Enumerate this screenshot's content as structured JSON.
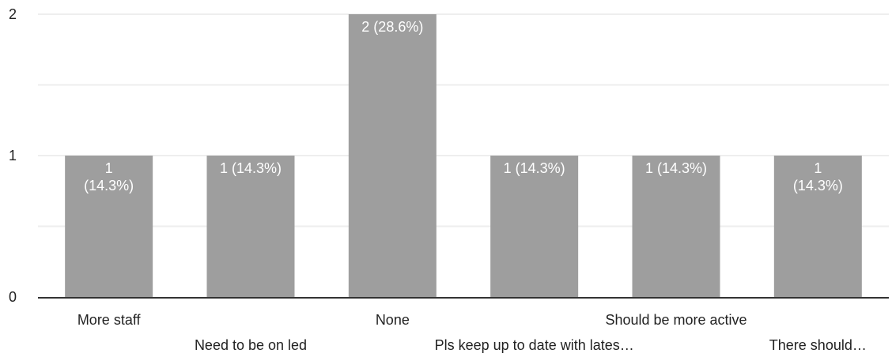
{
  "chart_data": {
    "type": "bar",
    "categories": [
      "More staff",
      "Need to be on led",
      "None",
      "Pls keep up to date with lates…",
      "Should be more active",
      "There should…"
    ],
    "values": [
      1,
      1,
      2,
      1,
      1,
      1
    ],
    "data_labels": [
      [
        "1",
        "(14.3%)"
      ],
      [
        "1 (14.3%)"
      ],
      [
        "2 (28.6%)"
      ],
      [
        "1 (14.3%)"
      ],
      [
        "1 (14.3%)"
      ],
      [
        "1",
        "(14.3%)"
      ]
    ],
    "yticks": [
      "0",
      "1",
      "2"
    ],
    "ylim": [
      0,
      2
    ],
    "grid": true,
    "colors": {
      "bar": "#9e9e9e",
      "grid": "#eeeeee",
      "axis": "#333333",
      "data_label": "#ffffff",
      "text": "#222222"
    }
  }
}
